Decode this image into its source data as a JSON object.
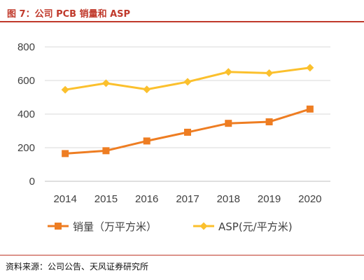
{
  "header": {
    "title": "图 7：公司 PCB 销量和 ASP"
  },
  "footer": {
    "source": "资料来源：公司公告、天风证券研究所"
  },
  "colors": {
    "accent": "#c0392b",
    "volume": "#ee7d22",
    "asp": "#fbc02d",
    "grid": "#d9d9d9"
  },
  "chart_data": {
    "type": "line",
    "title": "",
    "xlabel": "",
    "ylabel": "",
    "x": [
      "2014",
      "2015",
      "2016",
      "2017",
      "2018",
      "2019",
      "2020"
    ],
    "ylim": [
      0,
      800
    ],
    "yticks": [
      0,
      200,
      400,
      600,
      800
    ],
    "grid": true,
    "legend_position": "bottom",
    "series": [
      {
        "name": "销量（万平方米）",
        "marker": "square",
        "values": [
          165,
          182,
          240,
          292,
          345,
          354,
          430
        ]
      },
      {
        "name": "ASP(元/平方米)",
        "marker": "diamond",
        "values": [
          545,
          584,
          547,
          592,
          651,
          644,
          676
        ]
      }
    ]
  }
}
